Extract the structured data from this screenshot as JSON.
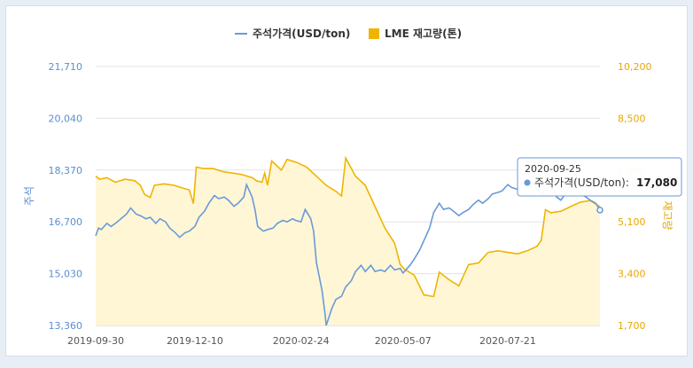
{
  "chart_data": {
    "type": "line",
    "title": "",
    "legend": {
      "placement": "top-center",
      "items": [
        {
          "name": "주석가격(USD/ton)",
          "color": "#6a9ad6",
          "shape": "line"
        },
        {
          "name": "LME 재고량(톤)",
          "color": "#f0b400",
          "shape": "box"
        }
      ]
    },
    "y_left": {
      "label": "주석",
      "range": [
        13360,
        21710
      ],
      "ticks": [
        "21,710",
        "20,040",
        "18,370",
        "16,700",
        "15,030",
        "13,360"
      ],
      "color": "#5b8fd0"
    },
    "y_right": {
      "label": "재고량",
      "range": [
        1700,
        10200
      ],
      "ticks": [
        "10,200",
        "8,500",
        "6,800",
        "5,100",
        "3,400",
        "1,700"
      ],
      "color": "#e8a700"
    },
    "x_ticks": [
      "2019-09-30",
      "2019-12-10",
      "2020-02-24",
      "2020-05-07",
      "2020-07-21"
    ],
    "grid": true,
    "series": [
      {
        "name": "주석가격(USD/ton)",
        "color": "#6a9ad6",
        "axis": "left",
        "points": [
          [
            "2019-09-30",
            16250
          ],
          [
            "2019-10-02",
            16500
          ],
          [
            "2019-10-04",
            16450
          ],
          [
            "2019-10-08",
            16650
          ],
          [
            "2019-10-11",
            16550
          ],
          [
            "2019-10-15",
            16680
          ],
          [
            "2019-10-18",
            16800
          ],
          [
            "2019-10-22",
            16950
          ],
          [
            "2019-10-25",
            17150
          ],
          [
            "2019-10-29",
            16950
          ],
          [
            "2019-11-01",
            16900
          ],
          [
            "2019-11-05",
            16800
          ],
          [
            "2019-11-08",
            16850
          ],
          [
            "2019-11-12",
            16650
          ],
          [
            "2019-11-15",
            16800
          ],
          [
            "2019-11-19",
            16700
          ],
          [
            "2019-11-22",
            16500
          ],
          [
            "2019-11-26",
            16350
          ],
          [
            "2019-11-29",
            16200
          ],
          [
            "2019-12-03",
            16350
          ],
          [
            "2019-12-06",
            16400
          ],
          [
            "2019-12-10",
            16550
          ],
          [
            "2019-12-13",
            16850
          ],
          [
            "2019-12-17",
            17050
          ],
          [
            "2019-12-20",
            17300
          ],
          [
            "2019-12-24",
            17550
          ],
          [
            "2019-12-27",
            17450
          ],
          [
            "2019-12-31",
            17500
          ],
          [
            "2020-01-03",
            17400
          ],
          [
            "2020-01-07",
            17200
          ],
          [
            "2020-01-10",
            17300
          ],
          [
            "2020-01-14",
            17500
          ],
          [
            "2020-01-16",
            17900
          ],
          [
            "2020-01-20",
            17500
          ],
          [
            "2020-01-22",
            17100
          ],
          [
            "2020-01-24",
            16550
          ],
          [
            "2020-01-28",
            16400
          ],
          [
            "2020-01-31",
            16450
          ],
          [
            "2020-02-04",
            16500
          ],
          [
            "2020-02-07",
            16650
          ],
          [
            "2020-02-11",
            16750
          ],
          [
            "2020-02-14",
            16700
          ],
          [
            "2020-02-18",
            16800
          ],
          [
            "2020-02-20",
            16750
          ],
          [
            "2020-02-24",
            16700
          ],
          [
            "2020-02-27",
            17100
          ],
          [
            "2020-03-02",
            16800
          ],
          [
            "2020-03-04",
            16400
          ],
          [
            "2020-03-06",
            15400
          ],
          [
            "2020-03-10",
            14500
          ],
          [
            "2020-03-12",
            13800
          ],
          [
            "2020-03-13",
            13360
          ],
          [
            "2020-03-17",
            13900
          ],
          [
            "2020-03-20",
            14200
          ],
          [
            "2020-03-24",
            14300
          ],
          [
            "2020-03-27",
            14600
          ],
          [
            "2020-03-31",
            14800
          ],
          [
            "2020-04-03",
            15100
          ],
          [
            "2020-04-07",
            15300
          ],
          [
            "2020-04-10",
            15100
          ],
          [
            "2020-04-14",
            15300
          ],
          [
            "2020-04-17",
            15100
          ],
          [
            "2020-04-21",
            15150
          ],
          [
            "2020-04-24",
            15100
          ],
          [
            "2020-04-28",
            15300
          ],
          [
            "2020-05-01",
            15150
          ],
          [
            "2020-05-05",
            15200
          ],
          [
            "2020-05-07",
            15050
          ],
          [
            "2020-05-12",
            15300
          ],
          [
            "2020-05-15",
            15500
          ],
          [
            "2020-05-19",
            15800
          ],
          [
            "2020-05-22",
            16100
          ],
          [
            "2020-05-26",
            16500
          ],
          [
            "2020-05-29",
            17000
          ],
          [
            "2020-06-02",
            17300
          ],
          [
            "2020-06-05",
            17100
          ],
          [
            "2020-06-09",
            17150
          ],
          [
            "2020-06-12",
            17050
          ],
          [
            "2020-06-16",
            16900
          ],
          [
            "2020-06-19",
            17000
          ],
          [
            "2020-06-23",
            17100
          ],
          [
            "2020-06-26",
            17250
          ],
          [
            "2020-06-30",
            17400
          ],
          [
            "2020-07-03",
            17300
          ],
          [
            "2020-07-07",
            17450
          ],
          [
            "2020-07-10",
            17600
          ],
          [
            "2020-07-14",
            17650
          ],
          [
            "2020-07-17",
            17700
          ],
          [
            "2020-07-21",
            17900
          ],
          [
            "2020-07-24",
            17800
          ],
          [
            "2020-07-28",
            17750
          ],
          [
            "2020-07-31",
            17950
          ],
          [
            "2020-08-04",
            17900
          ],
          [
            "2020-08-07",
            18000
          ],
          [
            "2020-08-11",
            17750
          ],
          [
            "2020-08-14",
            17600
          ],
          [
            "2020-08-18",
            17750
          ],
          [
            "2020-08-21",
            17900
          ],
          [
            "2020-08-25",
            17500
          ],
          [
            "2020-08-28",
            17400
          ],
          [
            "2020-09-01",
            17650
          ],
          [
            "2020-09-04",
            17900
          ],
          [
            "2020-09-08",
            17800
          ],
          [
            "2020-09-11",
            17600
          ],
          [
            "2020-09-15",
            17500
          ],
          [
            "2020-09-18",
            17400
          ],
          [
            "2020-09-22",
            17300
          ],
          [
            "2020-09-25",
            17080
          ]
        ]
      },
      {
        "name": "LME 재고량(톤)",
        "color": "#f0b400",
        "fill": "#fff6d6",
        "axis": "right",
        "points": [
          [
            "2019-09-30",
            6600
          ],
          [
            "2019-10-03",
            6500
          ],
          [
            "2019-10-08",
            6550
          ],
          [
            "2019-10-14",
            6400
          ],
          [
            "2019-10-21",
            6500
          ],
          [
            "2019-10-28",
            6450
          ],
          [
            "2019-11-01",
            6300
          ],
          [
            "2019-11-04",
            6000
          ],
          [
            "2019-11-08",
            5900
          ],
          [
            "2019-11-11",
            6300
          ],
          [
            "2019-11-18",
            6350
          ],
          [
            "2019-11-25",
            6300
          ],
          [
            "2019-12-02",
            6200
          ],
          [
            "2019-12-06",
            6150
          ],
          [
            "2019-12-09",
            5700
          ],
          [
            "2019-12-11",
            6900
          ],
          [
            "2019-12-16",
            6850
          ],
          [
            "2019-12-23",
            6850
          ],
          [
            "2019-12-30",
            6750
          ],
          [
            "2020-01-06",
            6700
          ],
          [
            "2020-01-13",
            6650
          ],
          [
            "2020-01-20",
            6550
          ],
          [
            "2020-01-23",
            6450
          ],
          [
            "2020-01-27",
            6400
          ],
          [
            "2020-01-29",
            6700
          ],
          [
            "2020-01-31",
            6300
          ],
          [
            "2020-02-03",
            7100
          ],
          [
            "2020-02-10",
            6800
          ],
          [
            "2020-02-14",
            7150
          ],
          [
            "2020-02-21",
            7050
          ],
          [
            "2020-02-28",
            6900
          ],
          [
            "2020-03-06",
            6600
          ],
          [
            "2020-03-13",
            6300
          ],
          [
            "2020-03-20",
            6100
          ],
          [
            "2020-03-24",
            5950
          ],
          [
            "2020-03-27",
            7200
          ],
          [
            "2020-04-03",
            6600
          ],
          [
            "2020-04-10",
            6300
          ],
          [
            "2020-04-17",
            5600
          ],
          [
            "2020-04-24",
            4900
          ],
          [
            "2020-05-01",
            4400
          ],
          [
            "2020-05-05",
            3700
          ],
          [
            "2020-05-08",
            3550
          ],
          [
            "2020-05-15",
            3350
          ],
          [
            "2020-05-22",
            2700
          ],
          [
            "2020-05-29",
            2650
          ],
          [
            "2020-06-02",
            3450
          ],
          [
            "2020-06-09",
            3200
          ],
          [
            "2020-06-16",
            3000
          ],
          [
            "2020-06-23",
            3700
          ],
          [
            "2020-06-30",
            3750
          ],
          [
            "2020-07-07",
            4100
          ],
          [
            "2020-07-14",
            4150
          ],
          [
            "2020-07-21",
            4100
          ],
          [
            "2020-07-28",
            4050
          ],
          [
            "2020-08-04",
            4150
          ],
          [
            "2020-08-11",
            4300
          ],
          [
            "2020-08-14",
            4500
          ],
          [
            "2020-08-17",
            5500
          ],
          [
            "2020-08-21",
            5400
          ],
          [
            "2020-08-28",
            5450
          ],
          [
            "2020-09-04",
            5600
          ],
          [
            "2020-09-11",
            5750
          ],
          [
            "2020-09-18",
            5800
          ],
          [
            "2020-09-25",
            5600
          ]
        ]
      }
    ],
    "tooltip": {
      "date": "2020-09-25",
      "label": "주석가격(USD/ton):",
      "value": "17,080"
    }
  }
}
